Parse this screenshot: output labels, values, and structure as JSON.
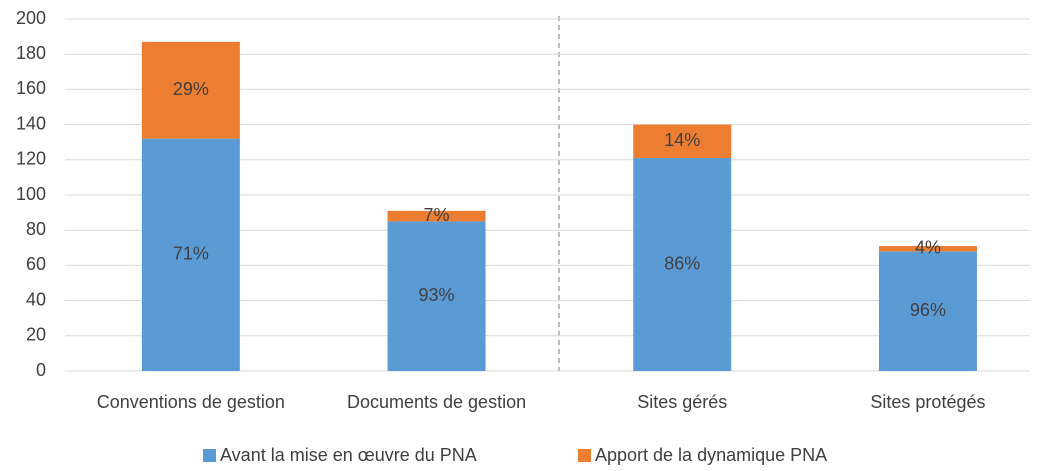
{
  "chart_data": {
    "type": "stacked_bar",
    "categories": [
      "Conventions de gestion",
      "Documents de gestion",
      "Sites gérés",
      "Sites protégés"
    ],
    "series": [
      {
        "name": "Avant la mise en œuvre du PNA",
        "color": "#5b9bd5",
        "values": [
          132,
          85,
          121,
          68
        ],
        "share_labels": [
          "71%",
          "93%",
          "86%",
          "96%"
        ]
      },
      {
        "name": "Apport de la dynamique PNA",
        "color": "#ed7d31",
        "values": [
          55,
          6,
          19,
          3
        ],
        "share_labels": [
          "29%",
          "7%",
          "14%",
          "4%"
        ]
      }
    ],
    "ylim": [
      0,
      200
    ],
    "yticks": [
      0,
      20,
      40,
      60,
      80,
      100,
      120,
      140,
      160,
      180,
      200
    ],
    "grid": true,
    "legend": "bottom"
  }
}
